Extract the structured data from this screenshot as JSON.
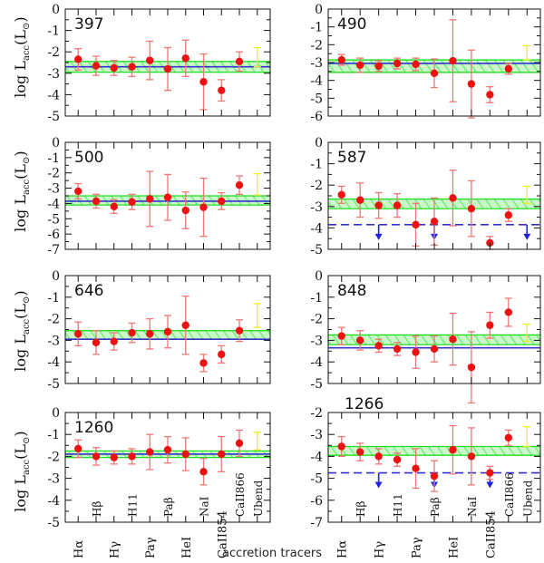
{
  "figure": {
    "xlabel": "accretion tracers",
    "ylabel_main": "log  L",
    "ylabel_sub": "acc",
    "ylabel_unit": "(L",
    "ylabel_unit_sym": "⊙",
    "ylabel_close": ")"
  },
  "colors": {
    "point": "#ee1111",
    "errorbar": "#ee7777",
    "band_line": "#22dd22",
    "band_hatch": "#66ee66",
    "mean_line": "#3333cc",
    "ubound": "#eeee22",
    "upper_limit": "#2222dd"
  },
  "tracers": [
    "Hα",
    "Hβ",
    "Hγ",
    "H11",
    "Paγ",
    "Paβ",
    "HeI",
    "NaI",
    "CaII_854",
    "CaII_866",
    "Ubend"
  ],
  "tick_labels": {
    "left": [
      "Hα",
      "Hγ",
      "Paγ",
      "HeI",
      "CaII854"
    ],
    "right": [
      "Hα",
      "Hγ",
      "Paγ",
      "HeI",
      "CaII854"
    ],
    "upper": [
      "Hβ",
      "H11",
      "Paβ",
      "NaI",
      "CaII866",
      "Ubend"
    ]
  },
  "chart_data": [
    {
      "type": "scatter",
      "label": "397",
      "ylim": [
        -5,
        0
      ],
      "yticks": [
        0,
        -1,
        -2,
        -3,
        -4,
        -5
      ],
      "values": [
        -2.35,
        -2.65,
        -2.75,
        -2.7,
        -2.4,
        -2.8,
        -2.3,
        -3.4,
        -3.8,
        -2.45,
        -2.25
      ],
      "err": [
        0.5,
        0.45,
        0.35,
        0.45,
        0.9,
        1.0,
        0.85,
        1.3,
        0.5,
        0.45,
        0.45
      ],
      "band": [
        -2.45,
        -2.95
      ],
      "mean": -2.7
    },
    {
      "type": "scatter",
      "label": "490",
      "ylim": [
        -6,
        0
      ],
      "yticks": [
        0,
        -1,
        -2,
        -3,
        -4,
        -5,
        -6
      ],
      "values": [
        -2.85,
        -3.15,
        -3.2,
        -3.05,
        -3.1,
        -3.6,
        -2.9,
        -4.2,
        -4.8,
        -3.35,
        -2.45
      ],
      "err": [
        0.3,
        0.4,
        0.3,
        0.3,
        0.35,
        0.8,
        2.3,
        1.9,
        0.45,
        0.3,
        0.4
      ],
      "band": [
        -2.85,
        -3.55
      ],
      "mean": -3.05
    },
    {
      "type": "scatter",
      "label": "500",
      "ylim": [
        -7,
        0
      ],
      "yticks": [
        0,
        -1,
        -2,
        -3,
        -4,
        -5,
        -6,
        -7
      ],
      "values": [
        -3.2,
        -3.85,
        -4.2,
        -3.9,
        -3.7,
        -3.6,
        -4.45,
        -4.25,
        -3.85,
        -2.8,
        -2.75
      ],
      "err": [
        0.5,
        0.45,
        0.45,
        0.5,
        1.8,
        1.5,
        1.2,
        1.9,
        0.55,
        0.6,
        0.7
      ],
      "band": [
        -3.5,
        -4.1
      ],
      "mean": -3.85
    },
    {
      "type": "scatter",
      "label": "587",
      "ylim": [
        -5,
        0
      ],
      "yticks": [
        0,
        -1,
        -2,
        -3,
        -4,
        -5
      ],
      "values": [
        -2.45,
        -2.7,
        -2.95,
        -2.95,
        -3.85,
        -3.7,
        -2.6,
        -3.1,
        -4.7,
        -3.4,
        -2.45
      ],
      "err": [
        0.4,
        0.8,
        0.6,
        0.55,
        1.0,
        1.1,
        1.3,
        1.3,
        0.3,
        0.3,
        0.4
      ],
      "band": [
        -2.65,
        -3.1
      ],
      "mean": -3.85,
      "upper_limit_x": [
        2,
        5,
        10
      ]
    },
    {
      "type": "scatter",
      "label": "646",
      "ylim": [
        -5,
        0
      ],
      "yticks": [
        0,
        -1,
        -2,
        -3,
        -4,
        -5
      ],
      "values": [
        -2.7,
        -3.1,
        -3.05,
        -2.65,
        -2.7,
        -2.6,
        -2.3,
        -4.05,
        -3.65,
        -2.55,
        -1.85
      ],
      "err": [
        0.55,
        0.55,
        0.4,
        0.45,
        0.7,
        0.75,
        1.35,
        0.4,
        0.4,
        0.5,
        0.55
      ],
      "band": [
        -2.55,
        -2.95
      ],
      "mean": -2.95
    },
    {
      "type": "scatter",
      "label": "848",
      "ylim": [
        -5,
        0
      ],
      "yticks": [
        0,
        -1,
        -2,
        -3,
        -4,
        -5
      ],
      "values": [
        -2.8,
        -3.0,
        -3.25,
        -3.4,
        -3.55,
        -3.4,
        -2.95,
        -4.25,
        -2.3,
        -1.7,
        -2.65
      ],
      "err": [
        0.4,
        0.45,
        0.3,
        0.3,
        0.75,
        0.6,
        1.2,
        1.65,
        0.6,
        0.65,
        0.4
      ],
      "band": [
        -2.75,
        -3.2
      ],
      "mean": -3.35
    },
    {
      "type": "scatter",
      "label": "1260",
      "ylim": [
        -5,
        0
      ],
      "yticks": [
        0,
        -1,
        -2,
        -3,
        -4,
        -5
      ],
      "values": [
        -1.65,
        -2.0,
        -2.05,
        -2.0,
        -1.8,
        -1.7,
        -1.9,
        -2.7,
        -1.9,
        -1.4,
        -1.3
      ],
      "err": [
        0.4,
        0.4,
        0.3,
        0.35,
        0.8,
        0.6,
        0.75,
        0.6,
        0.8,
        0.6,
        0.4
      ],
      "band": [
        -1.75,
        -2.05
      ],
      "mean": -1.9
    },
    {
      "type": "scatter",
      "label": "1266",
      "ylim": [
        -7,
        -2
      ],
      "yticks": [
        -2,
        -3,
        -4,
        -5,
        -6,
        -7
      ],
      "values": [
        -3.55,
        -3.8,
        -4.0,
        -4.15,
        -4.55,
        -4.9,
        -3.7,
        -4.0,
        -4.75,
        -3.15,
        -3.1
      ],
      "err": [
        0.45,
        0.4,
        0.35,
        0.3,
        0.9,
        0.7,
        1.1,
        1.3,
        0.3,
        0.35,
        0.45
      ],
      "band": [
        -3.55,
        -3.95
      ],
      "mean": -4.75,
      "upper_limit_x": [
        2,
        5,
        8
      ]
    }
  ]
}
